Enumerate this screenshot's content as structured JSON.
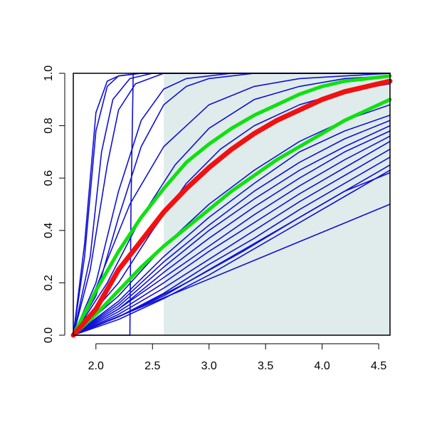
{
  "chart_data": {
    "type": "line",
    "title": "",
    "xlabel": "",
    "ylabel": "",
    "xlim": [
      1.8,
      4.6
    ],
    "ylim": [
      0.0,
      1.0
    ],
    "x_ticks": [
      "2.0",
      "2.5",
      "3.0",
      "3.5",
      "4.0",
      "4.5"
    ],
    "y_ticks": [
      "0.0",
      "0.2",
      "0.4",
      "0.6",
      "0.8",
      "1.0"
    ],
    "grid": false,
    "legend": "none",
    "shaded_region": {
      "x_from": 2.6,
      "x_to": 4.6,
      "color": "#e0ecec"
    },
    "colors": {
      "curves": "#1010d8",
      "highlight": "#f21010",
      "bounds": "#10e010"
    },
    "series": [
      {
        "role": "highlight",
        "color": "#f21010",
        "points": [
          [
            1.8,
            0.0
          ],
          [
            2.0,
            0.1
          ],
          [
            2.2,
            0.25
          ],
          [
            2.4,
            0.36
          ],
          [
            2.6,
            0.47
          ],
          [
            2.8,
            0.56
          ],
          [
            3.0,
            0.64
          ],
          [
            3.2,
            0.71
          ],
          [
            3.4,
            0.77
          ],
          [
            3.6,
            0.82
          ],
          [
            3.8,
            0.86
          ],
          [
            4.0,
            0.9
          ],
          [
            4.2,
            0.93
          ],
          [
            4.4,
            0.95
          ],
          [
            4.6,
            0.97
          ]
        ]
      },
      {
        "role": "upper-bound",
        "color": "#10e010",
        "points": [
          [
            1.8,
            0.0
          ],
          [
            2.0,
            0.17
          ],
          [
            2.2,
            0.32
          ],
          [
            2.4,
            0.45
          ],
          [
            2.6,
            0.56
          ],
          [
            2.8,
            0.66
          ],
          [
            3.0,
            0.73
          ],
          [
            3.2,
            0.79
          ],
          [
            3.4,
            0.84
          ],
          [
            3.6,
            0.88
          ],
          [
            3.8,
            0.92
          ],
          [
            4.0,
            0.95
          ],
          [
            4.2,
            0.97
          ],
          [
            4.4,
            0.98
          ],
          [
            4.6,
            0.99
          ]
        ]
      },
      {
        "role": "lower-bound",
        "color": "#10e010",
        "points": [
          [
            1.8,
            0.0
          ],
          [
            2.0,
            0.08
          ],
          [
            2.2,
            0.17
          ],
          [
            2.4,
            0.26
          ],
          [
            2.6,
            0.34
          ],
          [
            2.8,
            0.41
          ],
          [
            3.0,
            0.48
          ],
          [
            3.2,
            0.55
          ],
          [
            3.4,
            0.61
          ],
          [
            3.6,
            0.67
          ],
          [
            3.8,
            0.72
          ],
          [
            4.0,
            0.77
          ],
          [
            4.2,
            0.82
          ],
          [
            4.4,
            0.86
          ],
          [
            4.6,
            0.9
          ]
        ]
      },
      {
        "role": "sample",
        "color": "#1010d8",
        "points": [
          [
            1.8,
            0.0
          ],
          [
            1.9,
            0.35
          ],
          [
            2.0,
            0.85
          ],
          [
            2.1,
            0.97
          ],
          [
            2.2,
            0.99
          ],
          [
            2.4,
            1.0
          ],
          [
            4.6,
            1.0
          ]
        ]
      },
      {
        "role": "sample",
        "color": "#1010d8",
        "points": [
          [
            1.8,
            0.0
          ],
          [
            1.9,
            0.3
          ],
          [
            2.0,
            0.78
          ],
          [
            2.1,
            0.95
          ],
          [
            2.2,
            0.99
          ],
          [
            2.4,
            1.0
          ],
          [
            4.6,
            1.0
          ]
        ]
      },
      {
        "role": "sample",
        "color": "#1010d8",
        "points": [
          [
            1.8,
            0.0
          ],
          [
            1.95,
            0.3
          ],
          [
            2.05,
            0.7
          ],
          [
            2.15,
            0.9
          ],
          [
            2.3,
            0.98
          ],
          [
            2.5,
            1.0
          ],
          [
            4.6,
            1.0
          ]
        ]
      },
      {
        "role": "sample",
        "color": "#1010d8",
        "points": [
          [
            1.8,
            0.0
          ],
          [
            1.95,
            0.25
          ],
          [
            2.1,
            0.65
          ],
          [
            2.2,
            0.86
          ],
          [
            2.35,
            0.96
          ],
          [
            2.6,
            1.0
          ],
          [
            4.6,
            1.0
          ]
        ]
      },
      {
        "role": "sample",
        "color": "#1010d8",
        "points": [
          [
            1.8,
            0.0
          ],
          [
            2.0,
            0.2
          ],
          [
            2.2,
            0.55
          ],
          [
            2.4,
            0.82
          ],
          [
            2.6,
            0.94
          ],
          [
            2.8,
            0.98
          ],
          [
            3.2,
            1.0
          ],
          [
            4.6,
            1.0
          ]
        ]
      },
      {
        "role": "sample",
        "color": "#1010d8",
        "points": [
          [
            1.8,
            0.0
          ],
          [
            2.0,
            0.15
          ],
          [
            2.2,
            0.45
          ],
          [
            2.4,
            0.72
          ],
          [
            2.6,
            0.88
          ],
          [
            2.8,
            0.95
          ],
          [
            3.0,
            0.98
          ],
          [
            3.4,
            1.0
          ],
          [
            4.6,
            1.0
          ]
        ]
      },
      {
        "role": "sample",
        "color": "#1010d8",
        "points": [
          [
            1.8,
            0.0
          ],
          [
            2.3,
            0.0
          ],
          [
            2.31,
            0.5
          ],
          [
            2.33,
            1.0
          ],
          [
            4.6,
            1.0
          ]
        ]
      },
      {
        "role": "sample",
        "color": "#1010d8",
        "points": [
          [
            1.8,
            0.0
          ],
          [
            2.0,
            0.18
          ],
          [
            2.3,
            0.5
          ],
          [
            2.6,
            0.72
          ],
          [
            3.0,
            0.88
          ],
          [
            3.4,
            0.95
          ],
          [
            3.8,
            0.98
          ],
          [
            4.2,
            0.99
          ],
          [
            4.6,
            1.0
          ]
        ]
      },
      {
        "role": "sample",
        "color": "#1010d8",
        "points": [
          [
            1.8,
            0.0
          ],
          [
            2.1,
            0.2
          ],
          [
            2.4,
            0.45
          ],
          [
            2.7,
            0.65
          ],
          [
            3.0,
            0.79
          ],
          [
            3.4,
            0.9
          ],
          [
            3.8,
            0.95
          ],
          [
            4.2,
            0.98
          ],
          [
            4.6,
            0.99
          ]
        ]
      },
      {
        "role": "sample",
        "color": "#1010d8",
        "points": [
          [
            1.8,
            0.0
          ],
          [
            2.2,
            0.2
          ],
          [
            2.5,
            0.4
          ],
          [
            2.8,
            0.58
          ],
          [
            3.1,
            0.71
          ],
          [
            3.4,
            0.8
          ],
          [
            3.8,
            0.88
          ],
          [
            4.2,
            0.93
          ],
          [
            4.6,
            0.96
          ]
        ]
      },
      {
        "role": "sample",
        "color": "#1010d8",
        "points": [
          [
            1.8,
            0.0
          ],
          [
            2.2,
            0.15
          ],
          [
            2.6,
            0.34
          ],
          [
            3.0,
            0.5
          ],
          [
            3.4,
            0.63
          ],
          [
            3.8,
            0.74
          ],
          [
            4.2,
            0.82
          ],
          [
            4.6,
            0.88
          ]
        ]
      },
      {
        "role": "sample",
        "color": "#1010d8",
        "points": [
          [
            1.8,
            0.0
          ],
          [
            2.2,
            0.13
          ],
          [
            2.6,
            0.3
          ],
          [
            3.0,
            0.45
          ],
          [
            3.4,
            0.58
          ],
          [
            3.8,
            0.7
          ],
          [
            4.2,
            0.78
          ],
          [
            4.6,
            0.84
          ]
        ]
      },
      {
        "role": "sample",
        "color": "#1010d8",
        "points": [
          [
            1.8,
            0.0
          ],
          [
            2.2,
            0.12
          ],
          [
            2.6,
            0.28
          ],
          [
            3.0,
            0.42
          ],
          [
            3.4,
            0.55
          ],
          [
            3.8,
            0.66
          ],
          [
            4.2,
            0.75
          ],
          [
            4.6,
            0.82
          ]
        ]
      },
      {
        "role": "sample",
        "color": "#1010d8",
        "points": [
          [
            1.8,
            0.0
          ],
          [
            2.2,
            0.11
          ],
          [
            2.6,
            0.26
          ],
          [
            3.0,
            0.4
          ],
          [
            3.4,
            0.52
          ],
          [
            3.8,
            0.63
          ],
          [
            4.2,
            0.72
          ],
          [
            4.6,
            0.8
          ]
        ]
      },
      {
        "role": "sample",
        "color": "#1010d8",
        "points": [
          [
            1.8,
            0.0
          ],
          [
            2.2,
            0.1
          ],
          [
            2.6,
            0.24
          ],
          [
            3.0,
            0.37
          ],
          [
            3.4,
            0.49
          ],
          [
            3.8,
            0.6
          ],
          [
            4.2,
            0.7
          ],
          [
            4.6,
            0.78
          ]
        ]
      },
      {
        "role": "sample",
        "color": "#1010d8",
        "points": [
          [
            1.8,
            0.0
          ],
          [
            2.2,
            0.1
          ],
          [
            2.6,
            0.22
          ],
          [
            3.0,
            0.34
          ],
          [
            3.4,
            0.46
          ],
          [
            3.8,
            0.57
          ],
          [
            4.2,
            0.67
          ],
          [
            4.6,
            0.76
          ]
        ]
      },
      {
        "role": "sample",
        "color": "#1010d8",
        "points": [
          [
            1.8,
            0.0
          ],
          [
            2.2,
            0.09
          ],
          [
            2.6,
            0.2
          ],
          [
            3.0,
            0.32
          ],
          [
            3.4,
            0.43
          ],
          [
            3.8,
            0.54
          ],
          [
            4.2,
            0.64
          ],
          [
            4.6,
            0.74
          ]
        ]
      },
      {
        "role": "sample",
        "color": "#1010d8",
        "points": [
          [
            1.8,
            0.0
          ],
          [
            2.2,
            0.08
          ],
          [
            2.6,
            0.18
          ],
          [
            3.0,
            0.29
          ],
          [
            3.4,
            0.4
          ],
          [
            3.8,
            0.51
          ],
          [
            4.2,
            0.61
          ],
          [
            4.6,
            0.71
          ]
        ]
      },
      {
        "role": "sample",
        "color": "#1010d8",
        "points": [
          [
            1.8,
            0.0
          ],
          [
            2.2,
            0.07
          ],
          [
            2.6,
            0.16
          ],
          [
            3.0,
            0.27
          ],
          [
            3.4,
            0.37
          ],
          [
            3.8,
            0.48
          ],
          [
            4.2,
            0.58
          ],
          [
            4.6,
            0.68
          ]
        ]
      },
      {
        "role": "sample",
        "color": "#1010d8",
        "points": [
          [
            1.8,
            0.0
          ],
          [
            2.2,
            0.07
          ],
          [
            2.6,
            0.15
          ],
          [
            3.0,
            0.25
          ],
          [
            3.4,
            0.35
          ],
          [
            3.8,
            0.45
          ],
          [
            4.2,
            0.55
          ],
          [
            4.6,
            0.65
          ]
        ]
      },
      {
        "role": "sample",
        "color": "#1010d8",
        "points": [
          [
            1.8,
            0.0
          ],
          [
            2.2,
            0.06
          ],
          [
            2.6,
            0.14
          ],
          [
            3.0,
            0.23
          ],
          [
            3.4,
            0.33
          ],
          [
            3.8,
            0.43
          ],
          [
            4.2,
            0.53
          ],
          [
            4.6,
            0.63
          ]
        ]
      },
      {
        "role": "sample",
        "color": "#1010d8",
        "points": [
          [
            1.8,
            0.0
          ],
          [
            2.3,
            0.09
          ],
          [
            2.8,
            0.2
          ],
          [
            3.3,
            0.32
          ],
          [
            3.8,
            0.45
          ],
          [
            4.2,
            0.55
          ],
          [
            4.6,
            0.62
          ]
        ]
      },
      {
        "role": "sample",
        "color": "#1010d8",
        "points": [
          [
            1.8,
            0.0
          ],
          [
            4.6,
            0.5
          ]
        ]
      }
    ]
  }
}
